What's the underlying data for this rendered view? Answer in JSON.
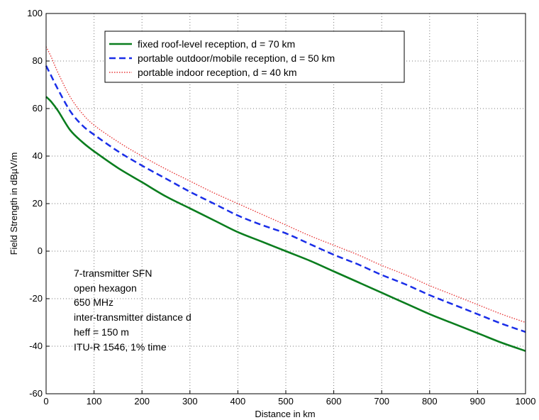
{
  "chart_data": {
    "type": "line",
    "xlabel": "Distance in km",
    "ylabel": "Field Strength in dBµV/m",
    "xlim": [
      0,
      1000
    ],
    "ylim": [
      -60,
      100
    ],
    "xticks": [
      0,
      100,
      200,
      300,
      400,
      500,
      600,
      700,
      800,
      900,
      1000
    ],
    "yticks": [
      -60,
      -40,
      -20,
      0,
      20,
      40,
      60,
      80,
      100
    ],
    "grid": true,
    "legend_position": "top-center",
    "series": [
      {
        "name": "fixed roof-level reception, d = 70 km",
        "color": "#0a7d1e",
        "style": "solid",
        "x": [
          0,
          10,
          25,
          50,
          75,
          100,
          150,
          200,
          250,
          300,
          350,
          400,
          450,
          500,
          550,
          600,
          650,
          700,
          750,
          800,
          850,
          900,
          950,
          1000
        ],
        "y": [
          65,
          63,
          59,
          51,
          46,
          42,
          35,
          29,
          23,
          18,
          13,
          8,
          4,
          0,
          -4,
          -8.5,
          -13,
          -17.5,
          -22,
          -26.5,
          -30.5,
          -34.5,
          -38.5,
          -42
        ]
      },
      {
        "name": "portable outdoor/mobile reception, d = 50 km",
        "color": "#1a2ee8",
        "style": "dashed",
        "x": [
          0,
          10,
          25,
          50,
          75,
          100,
          150,
          200,
          250,
          300,
          350,
          400,
          450,
          500,
          550,
          600,
          650,
          700,
          750,
          800,
          850,
          900,
          950,
          1000
        ],
        "y": [
          78,
          74,
          68,
          59,
          53,
          49,
          42,
          36,
          30.5,
          25,
          20,
          15,
          11,
          7.5,
          3,
          -1.5,
          -5.5,
          -10,
          -14,
          -18.5,
          -22.5,
          -26.5,
          -30.5,
          -34
        ]
      },
      {
        "name": "portable indoor reception, d = 40 km",
        "color": "#e83a3a",
        "style": "dotted",
        "x": [
          0,
          10,
          25,
          50,
          75,
          100,
          150,
          200,
          250,
          300,
          350,
          400,
          450,
          500,
          550,
          600,
          650,
          700,
          750,
          800,
          850,
          900,
          950,
          1000
        ],
        "y": [
          86,
          82,
          75,
          65,
          58,
          53,
          46,
          40,
          34.5,
          29.5,
          24.5,
          20,
          15.5,
          11,
          6.5,
          2.5,
          -1.5,
          -6,
          -10,
          -14.5,
          -18.5,
          -22.5,
          -26.5,
          -30
        ]
      }
    ],
    "annotations": [
      "7-transmitter SFN",
      "open hexagon",
      "650 MHz",
      "inter-transmitter distance d",
      "heff = 150 m",
      "ITU-R 1546, 1% time"
    ]
  }
}
